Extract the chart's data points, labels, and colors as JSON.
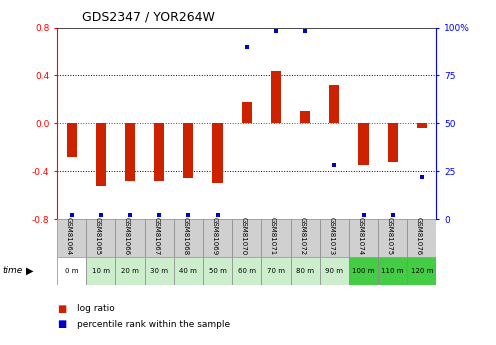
{
  "title": "GDS2347 / YOR264W",
  "samples": [
    "GSM81064",
    "GSM81065",
    "GSM81066",
    "GSM81067",
    "GSM81068",
    "GSM81069",
    "GSM81070",
    "GSM81071",
    "GSM81072",
    "GSM81073",
    "GSM81074",
    "GSM81075",
    "GSM81076"
  ],
  "time_labels": [
    "0 m",
    "10 m",
    "20 m",
    "30 m",
    "40 m",
    "50 m",
    "60 m",
    "70 m",
    "80 m",
    "90 m",
    "100 m",
    "110 m",
    "120 m"
  ],
  "log_ratio": [
    -0.28,
    -0.52,
    -0.48,
    -0.48,
    -0.46,
    -0.5,
    0.18,
    0.44,
    0.1,
    0.32,
    -0.35,
    -0.32,
    -0.04
  ],
  "percentile": [
    2,
    2,
    2,
    2,
    2,
    2,
    90,
    98,
    98,
    28,
    2,
    2,
    22
  ],
  "ylim_left": [
    -0.8,
    0.8
  ],
  "ylim_right": [
    0,
    100
  ],
  "yticks_left": [
    -0.8,
    -0.4,
    0.0,
    0.4,
    0.8
  ],
  "yticks_right": [
    0,
    25,
    50,
    75,
    100
  ],
  "ytick_labels_right": [
    "0",
    "25",
    "50",
    "75",
    "100%"
  ],
  "bar_color": "#cc2200",
  "scatter_color": "#0000cc",
  "sample_row_colors": [
    "#d0d0d0",
    "#d0d0d0",
    "#d0d0d0",
    "#d0d0d0",
    "#d0d0d0",
    "#d0d0d0",
    "#d0d0d0",
    "#d0d0d0",
    "#d0d0d0",
    "#d0d0d0",
    "#d0d0d0",
    "#d0d0d0",
    "#d0d0d0"
  ],
  "time_row_colors": [
    "#ffffff",
    "#cceecc",
    "#cceecc",
    "#cceecc",
    "#cceecc",
    "#cceecc",
    "#cceecc",
    "#cceecc",
    "#cceecc",
    "#cceecc",
    "#44cc44",
    "#44cc44",
    "#44cc44"
  ],
  "bg_color": "#ffffff"
}
